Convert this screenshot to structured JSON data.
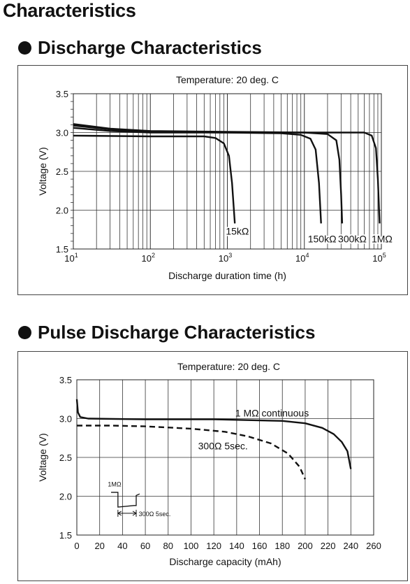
{
  "page": {
    "title": "Characteristics"
  },
  "sections": [
    {
      "title": "Discharge Characteristics"
    },
    {
      "title": "Pulse Discharge Characteristics"
    }
  ],
  "chart_data": [
    {
      "type": "line",
      "title": "Temperature: 20 deg. C",
      "xlabel": "Discharge duration time (h)",
      "ylabel": "Voltage (V)",
      "x_scale": "log",
      "xlim": [
        10,
        100000
      ],
      "ylim": [
        1.5,
        3.5
      ],
      "x_ticks": [
        {
          "value": 10,
          "base": "10",
          "exp": "1"
        },
        {
          "value": 100,
          "base": "10",
          "exp": "2"
        },
        {
          "value": 1000,
          "base": "10",
          "exp": "3"
        },
        {
          "value": 10000,
          "base": "10",
          "exp": "4"
        },
        {
          "value": 100000,
          "base": "10",
          "exp": "5"
        }
      ],
      "y_ticks": [
        {
          "value": 1.5,
          "label": "1.5"
        },
        {
          "value": 2.0,
          "label": "2.0"
        },
        {
          "value": 2.5,
          "label": "2.5"
        },
        {
          "value": 3.0,
          "label": "3.0"
        },
        {
          "value": 3.5,
          "label": "3.5"
        }
      ],
      "grid": true,
      "series": [
        {
          "name": "15kΩ",
          "points": [
            [
              10,
              2.96
            ],
            [
              100,
              2.95
            ],
            [
              500,
              2.95
            ],
            [
              700,
              2.93
            ],
            [
              900,
              2.86
            ],
            [
              1050,
              2.7
            ],
            [
              1150,
              2.35
            ],
            [
              1250,
              1.83
            ]
          ]
        },
        {
          "name": "150kΩ",
          "points": [
            [
              10,
              3.06
            ],
            [
              30,
              3.02
            ],
            [
              100,
              3.0
            ],
            [
              1000,
              3.0
            ],
            [
              5000,
              2.99
            ],
            [
              9000,
              2.97
            ],
            [
              12000,
              2.92
            ],
            [
              14000,
              2.78
            ],
            [
              15500,
              2.35
            ],
            [
              16500,
              1.83
            ]
          ]
        },
        {
          "name": "300kΩ",
          "points": [
            [
              10,
              3.09
            ],
            [
              30,
              3.04
            ],
            [
              100,
              3.01
            ],
            [
              1000,
              3.0
            ],
            [
              10000,
              3.0
            ],
            [
              20000,
              2.98
            ],
            [
              26000,
              2.9
            ],
            [
              28500,
              2.65
            ],
            [
              30000,
              2.2
            ],
            [
              31000,
              1.83
            ]
          ]
        },
        {
          "name": "1MΩ",
          "points": [
            [
              10,
              3.11
            ],
            [
              30,
              3.05
            ],
            [
              100,
              3.02
            ],
            [
              1000,
              3.01
            ],
            [
              10000,
              3.0
            ],
            [
              60000,
              3.0
            ],
            [
              75000,
              2.96
            ],
            [
              85000,
              2.8
            ],
            [
              90000,
              2.4
            ],
            [
              95000,
              1.83
            ]
          ]
        }
      ],
      "annotations": [
        {
          "text": "15kΩ",
          "x": 1350,
          "y": 1.73
        },
        {
          "text": "150kΩ",
          "x": 17000,
          "y": 1.63
        },
        {
          "text": "300kΩ",
          "x": 42000,
          "y": 1.63
        },
        {
          "text": "1MΩ",
          "x": 102000,
          "y": 1.63
        }
      ]
    },
    {
      "type": "line",
      "title": "Temperature: 20 deg. C",
      "xlabel": "Discharge capacity (mAh)",
      "ylabel": "Voltage (V)",
      "xlim": [
        0,
        260
      ],
      "ylim": [
        1.5,
        3.5
      ],
      "x_ticks": [
        0,
        20,
        40,
        60,
        80,
        100,
        120,
        140,
        160,
        180,
        200,
        220,
        240,
        260
      ],
      "y_ticks": [
        {
          "value": 1.5,
          "label": "1.5"
        },
        {
          "value": 2.0,
          "label": "2.0"
        },
        {
          "value": 2.5,
          "label": "2.5"
        },
        {
          "value": 3.0,
          "label": "3.0"
        },
        {
          "value": 3.5,
          "label": "3.5"
        }
      ],
      "grid": true,
      "series": [
        {
          "name": "1 MΩ continuous",
          "style": "solid",
          "points": [
            [
              0,
              3.25
            ],
            [
              1,
              3.08
            ],
            [
              3,
              3.02
            ],
            [
              10,
              3.0
            ],
            [
              60,
              2.99
            ],
            [
              120,
              2.99
            ],
            [
              180,
              2.97
            ],
            [
              200,
              2.94
            ],
            [
              215,
              2.88
            ],
            [
              225,
              2.8
            ],
            [
              232,
              2.7
            ],
            [
              237,
              2.58
            ],
            [
              240,
              2.35
            ]
          ]
        },
        {
          "name": "300Ω 5sec.",
          "style": "dashed",
          "points": [
            [
              0,
              2.91
            ],
            [
              30,
              2.91
            ],
            [
              60,
              2.9
            ],
            [
              100,
              2.87
            ],
            [
              130,
              2.83
            ],
            [
              150,
              2.77
            ],
            [
              170,
              2.68
            ],
            [
              185,
              2.55
            ],
            [
              195,
              2.38
            ],
            [
              200,
              2.22
            ]
          ]
        }
      ],
      "pulse_inset": {
        "high_label": "1MΩ",
        "low_label": "300Ω 5sec."
      }
    }
  ]
}
